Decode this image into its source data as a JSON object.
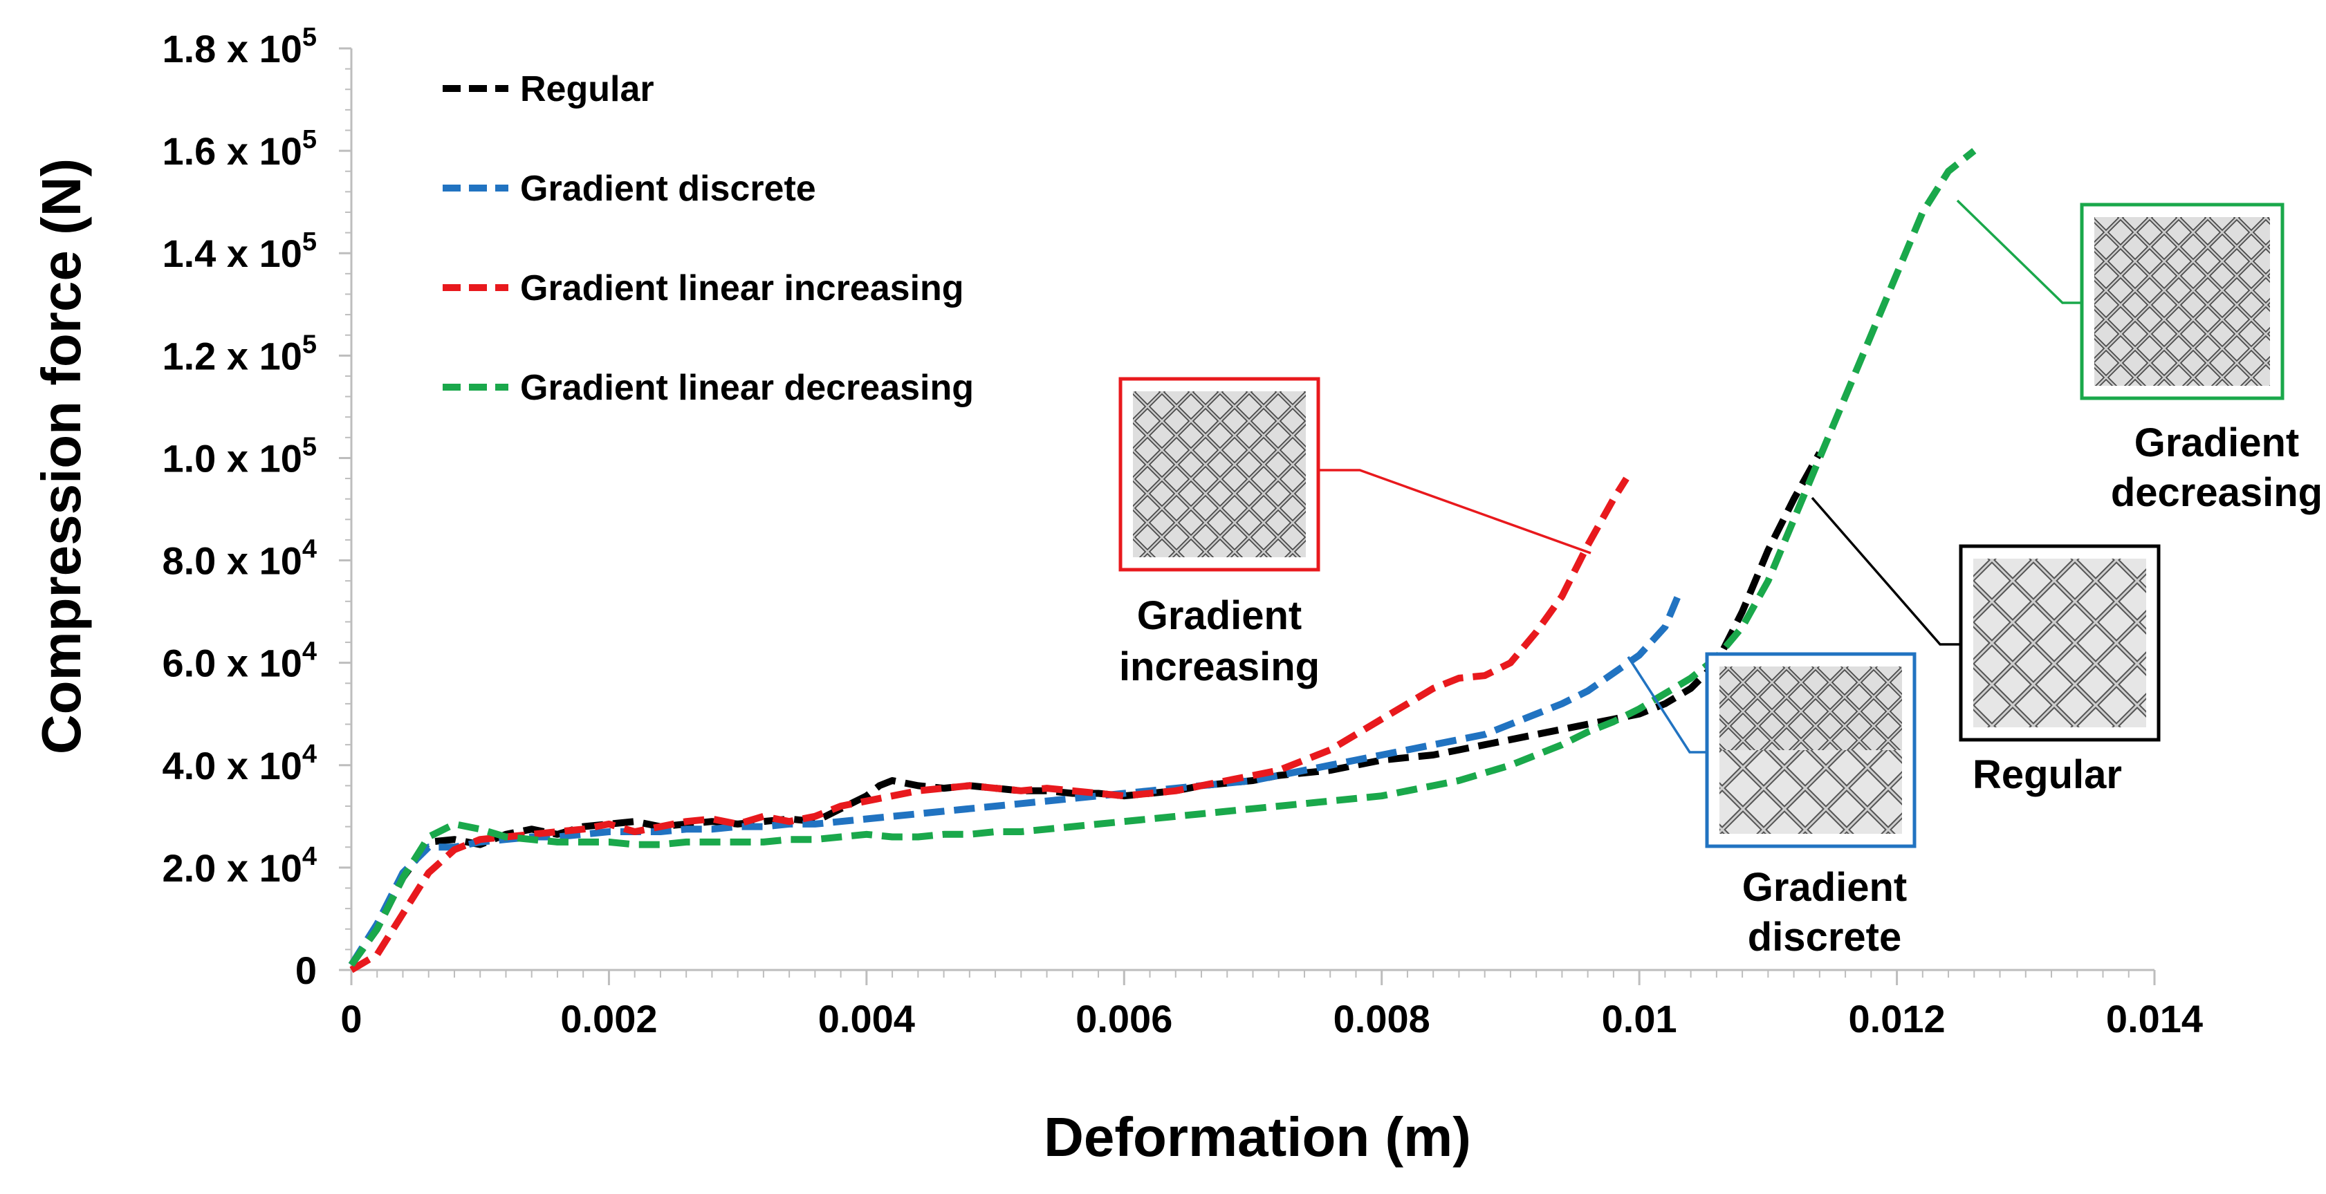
{
  "chart_data": {
    "type": "line",
    "xlabel": "Deformation (m)",
    "ylabel": "Compression force (N)",
    "xlim": [
      0,
      0.014
    ],
    "ylim": [
      0,
      180000
    ],
    "x_ticks": [
      {
        "value": 0,
        "label": "0"
      },
      {
        "value": 0.002,
        "label": "0.002"
      },
      {
        "value": 0.004,
        "label": "0.004"
      },
      {
        "value": 0.006,
        "label": "0.006"
      },
      {
        "value": 0.008,
        "label": "0.008"
      },
      {
        "value": 0.01,
        "label": "0.01"
      },
      {
        "value": 0.012,
        "label": "0.012"
      },
      {
        "value": 0.014,
        "label": "0.014"
      }
    ],
    "y_ticks": [
      {
        "value": 0,
        "mantissa": "0",
        "exp": ""
      },
      {
        "value": 20000,
        "mantissa": "2.0 x 10",
        "exp": "4"
      },
      {
        "value": 40000,
        "mantissa": "4.0 x 10",
        "exp": "4"
      },
      {
        "value": 60000,
        "mantissa": "6.0 x 10",
        "exp": "4"
      },
      {
        "value": 80000,
        "mantissa": "8.0 x 10",
        "exp": "4"
      },
      {
        "value": 100000,
        "mantissa": "1.0 x 10",
        "exp": "5"
      },
      {
        "value": 120000,
        "mantissa": "1.2 x 10",
        "exp": "5"
      },
      {
        "value": 140000,
        "mantissa": "1.4 x 10",
        "exp": "5"
      },
      {
        "value": 160000,
        "mantissa": "1.6 x 10",
        "exp": "5"
      },
      {
        "value": 180000,
        "mantissa": "1.8 x 10",
        "exp": "5"
      }
    ],
    "grid": false,
    "legend_position": "top-left",
    "series": [
      {
        "name": "Regular",
        "color": "#000000",
        "x": [
          0,
          0.0002,
          0.0004,
          0.0006,
          0.0008,
          0.001,
          0.0012,
          0.0014,
          0.0016,
          0.0018,
          0.002,
          0.0022,
          0.0024,
          0.0026,
          0.0028,
          0.003,
          0.0032,
          0.0034,
          0.0036,
          0.0038,
          0.004,
          0.0041,
          0.0042,
          0.0044,
          0.0046,
          0.0048,
          0.005,
          0.0052,
          0.0054,
          0.0056,
          0.0058,
          0.006,
          0.0062,
          0.0064,
          0.0066,
          0.0068,
          0.007,
          0.0072,
          0.0074,
          0.0076,
          0.0078,
          0.008,
          0.0082,
          0.0084,
          0.0086,
          0.0088,
          0.009,
          0.0092,
          0.0094,
          0.0096,
          0.0098,
          0.01,
          0.0102,
          0.0104,
          0.0106,
          0.0108,
          0.011,
          0.0112,
          0.0114
        ],
        "y": [
          1000,
          8000,
          18000,
          25000,
          25500,
          24500,
          26500,
          27500,
          26500,
          28000,
          28500,
          29000,
          28000,
          28500,
          29000,
          28500,
          29000,
          29500,
          29000,
          31500,
          34000,
          36000,
          37000,
          36000,
          35500,
          36000,
          35500,
          35000,
          35000,
          34500,
          34500,
          34000,
          34500,
          35000,
          36000,
          36500,
          37000,
          38000,
          38500,
          39000,
          40000,
          41000,
          41500,
          42000,
          43000,
          44000,
          45000,
          46000,
          47000,
          48000,
          49000,
          50000,
          52000,
          55000,
          60000,
          70000,
          82000,
          92000,
          101000
        ]
      },
      {
        "name": "Gradient discrete",
        "color": "#2173c1",
        "x": [
          0,
          0.0002,
          0.0004,
          0.0006,
          0.0008,
          0.001,
          0.0012,
          0.0014,
          0.0016,
          0.0018,
          0.002,
          0.0022,
          0.0024,
          0.0026,
          0.0028,
          0.003,
          0.0032,
          0.0034,
          0.0036,
          0.0038,
          0.004,
          0.0042,
          0.0044,
          0.0046,
          0.0048,
          0.005,
          0.0052,
          0.0054,
          0.0056,
          0.0058,
          0.006,
          0.0062,
          0.0064,
          0.0066,
          0.0068,
          0.007,
          0.0072,
          0.0074,
          0.0076,
          0.0078,
          0.008,
          0.0082,
          0.0084,
          0.0086,
          0.0088,
          0.009,
          0.0092,
          0.0094,
          0.0096,
          0.0098,
          0.01,
          0.0102,
          0.0103
        ],
        "y": [
          1000,
          9000,
          19000,
          24000,
          24000,
          25000,
          25500,
          26000,
          26000,
          26500,
          27000,
          27000,
          27000,
          27500,
          27500,
          28000,
          28000,
          28500,
          28500,
          29000,
          29500,
          30000,
          30500,
          31000,
          31500,
          32000,
          32500,
          33000,
          33500,
          34000,
          34500,
          35000,
          35500,
          36000,
          36500,
          37000,
          38000,
          39000,
          40000,
          41000,
          42000,
          43000,
          44000,
          45000,
          46000,
          48000,
          50000,
          52000,
          54500,
          58000,
          61500,
          67000,
          73000
        ]
      },
      {
        "name": "Gradient linear increasing",
        "color": "#e8191d",
        "x": [
          0,
          0.0002,
          0.0004,
          0.0006,
          0.0008,
          0.001,
          0.0012,
          0.0014,
          0.0016,
          0.0018,
          0.002,
          0.0022,
          0.0024,
          0.0026,
          0.0028,
          0.003,
          0.0032,
          0.0034,
          0.0036,
          0.0038,
          0.004,
          0.0042,
          0.0044,
          0.0046,
          0.0048,
          0.005,
          0.0052,
          0.0054,
          0.0056,
          0.0058,
          0.006,
          0.0062,
          0.0064,
          0.0066,
          0.0068,
          0.007,
          0.0072,
          0.0074,
          0.0076,
          0.0078,
          0.008,
          0.0082,
          0.0084,
          0.0086,
          0.0088,
          0.009,
          0.0092,
          0.0094,
          0.0096,
          0.0098,
          0.0099
        ],
        "y": [
          0,
          3000,
          11000,
          19000,
          23500,
          25500,
          26000,
          26500,
          27000,
          27500,
          28500,
          27000,
          28000,
          29000,
          29500,
          28500,
          30000,
          29000,
          30000,
          32000,
          33000,
          34000,
          35000,
          35500,
          36000,
          35500,
          35000,
          35500,
          35000,
          34500,
          34000,
          34500,
          35000,
          36000,
          37000,
          38000,
          39000,
          41000,
          43000,
          46000,
          49000,
          52000,
          55000,
          57000,
          57500,
          60000,
          66000,
          73000,
          83000,
          92000,
          96000
        ]
      },
      {
        "name": "Gradient linear decreasing",
        "color": "#1aa84b",
        "x": [
          0,
          0.0002,
          0.0004,
          0.0006,
          0.0008,
          0.001,
          0.0012,
          0.0014,
          0.0016,
          0.0018,
          0.002,
          0.0022,
          0.0024,
          0.0026,
          0.0028,
          0.003,
          0.0032,
          0.0034,
          0.0036,
          0.0038,
          0.004,
          0.0042,
          0.0044,
          0.0046,
          0.0048,
          0.005,
          0.0052,
          0.0054,
          0.0056,
          0.0058,
          0.006,
          0.0062,
          0.0064,
          0.0066,
          0.0068,
          0.007,
          0.0072,
          0.0074,
          0.0076,
          0.0078,
          0.008,
          0.0082,
          0.0084,
          0.0086,
          0.0088,
          0.009,
          0.0092,
          0.0094,
          0.0096,
          0.0098,
          0.01,
          0.0102,
          0.0104,
          0.0106,
          0.0108,
          0.011,
          0.0112,
          0.0114,
          0.0116,
          0.0118,
          0.012,
          0.0122,
          0.0124,
          0.0126
        ],
        "y": [
          1000,
          8000,
          18000,
          26000,
          28500,
          27500,
          26000,
          25500,
          25000,
          25000,
          25000,
          24500,
          24500,
          25000,
          25000,
          25000,
          25000,
          25500,
          25500,
          26000,
          26500,
          26000,
          26000,
          26500,
          26500,
          27000,
          27000,
          27500,
          28000,
          28500,
          29000,
          29500,
          30000,
          30500,
          31000,
          31500,
          32000,
          32500,
          33000,
          33500,
          34000,
          35000,
          36000,
          37000,
          38500,
          40000,
          42000,
          44000,
          46500,
          48500,
          51000,
          54000,
          57000,
          61000,
          67000,
          76000,
          88000,
          100000,
          112000,
          124000,
          136000,
          148000,
          156000,
          160000
        ]
      }
    ],
    "insets": [
      {
        "label_lines": [
          "Gradient",
          "increasing"
        ],
        "frame_color": "#e8191d",
        "pattern": "increasing"
      },
      {
        "label_lines": [
          "Gradient",
          "discrete"
        ],
        "frame_color": "#2173c1",
        "pattern": "discrete"
      },
      {
        "label_lines": [
          "Regular"
        ],
        "frame_color": "#000000",
        "pattern": "regular"
      },
      {
        "label_lines": [
          "Gradient",
          "decreasing"
        ],
        "frame_color": "#1aa84b",
        "pattern": "decreasing"
      }
    ]
  }
}
